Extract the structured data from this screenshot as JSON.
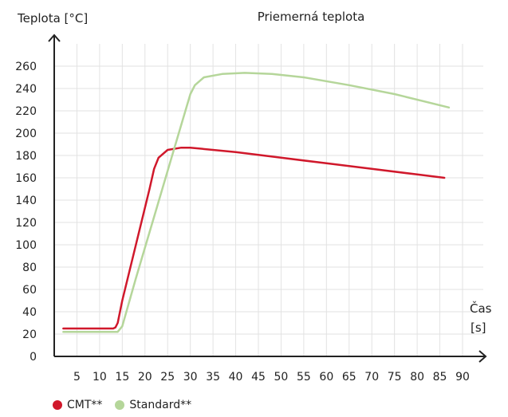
{
  "chart_data": {
    "type": "line",
    "title": "Priemerná teplota",
    "ylabel": "Teplota [°C]",
    "xlabel_line1": "Čas",
    "xlabel_line2": "[s]",
    "xlim": [
      0,
      90
    ],
    "ylim": [
      0,
      260
    ],
    "xticks": [
      5,
      10,
      15,
      20,
      25,
      30,
      35,
      40,
      45,
      50,
      55,
      60,
      65,
      70,
      75,
      80,
      85,
      90
    ],
    "yticks": [
      0,
      20,
      40,
      60,
      80,
      100,
      120,
      140,
      160,
      180,
      200,
      220,
      240,
      260
    ],
    "grid": true,
    "legend_position": "bottom-left",
    "series": [
      {
        "name": "CMT**",
        "color": "#d0182b",
        "x": [
          2,
          13,
          13.5,
          14,
          15,
          18,
          21,
          22,
          23,
          25,
          28,
          30,
          40,
          50,
          60,
          70,
          80,
          86
        ],
        "y": [
          25,
          25,
          26,
          30,
          50,
          100,
          150,
          168,
          178,
          185,
          187,
          187,
          183,
          178,
          173,
          168,
          163,
          160
        ]
      },
      {
        "name": "Standard**",
        "color": "#b5d69a",
        "x": [
          2,
          14,
          15,
          18,
          22,
          26,
          30,
          31,
          33,
          37,
          42,
          48,
          55,
          65,
          75,
          87
        ],
        "y": [
          22,
          22,
          27,
          70,
          125,
          180,
          235,
          243,
          250,
          253,
          254,
          253,
          250,
          243,
          235,
          223
        ]
      }
    ]
  }
}
